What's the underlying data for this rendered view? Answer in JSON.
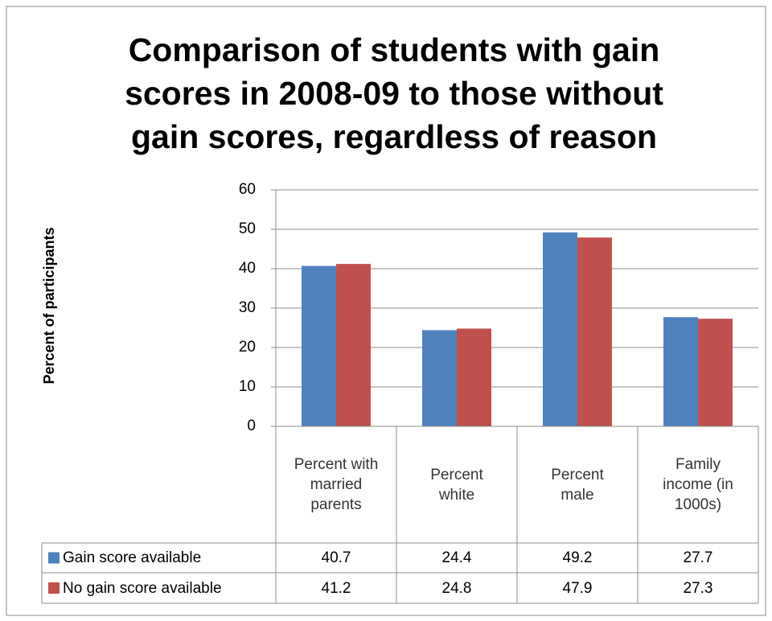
{
  "chart_data": {
    "type": "bar",
    "title": "Comparison of students with gain scores in 2008-09 to those without gain scores, regardless of reason",
    "y_label": "Percent of participants",
    "categories": [
      "Percent with married parents",
      "Percent white",
      "Percent male",
      "Family income (in 1000s)"
    ],
    "series": [
      {
        "name": "Gain score available",
        "color": "#4f81bd",
        "values": [
          40.7,
          24.4,
          49.2,
          27.7
        ]
      },
      {
        "name": "No gain score available",
        "color": "#c0504d",
        "values": [
          41.2,
          24.8,
          47.9,
          27.3
        ]
      }
    ],
    "ylim": [
      0,
      60
    ],
    "yticks": [
      0,
      10,
      20,
      30,
      40,
      50,
      60
    ],
    "grid": true,
    "data_table": true
  }
}
